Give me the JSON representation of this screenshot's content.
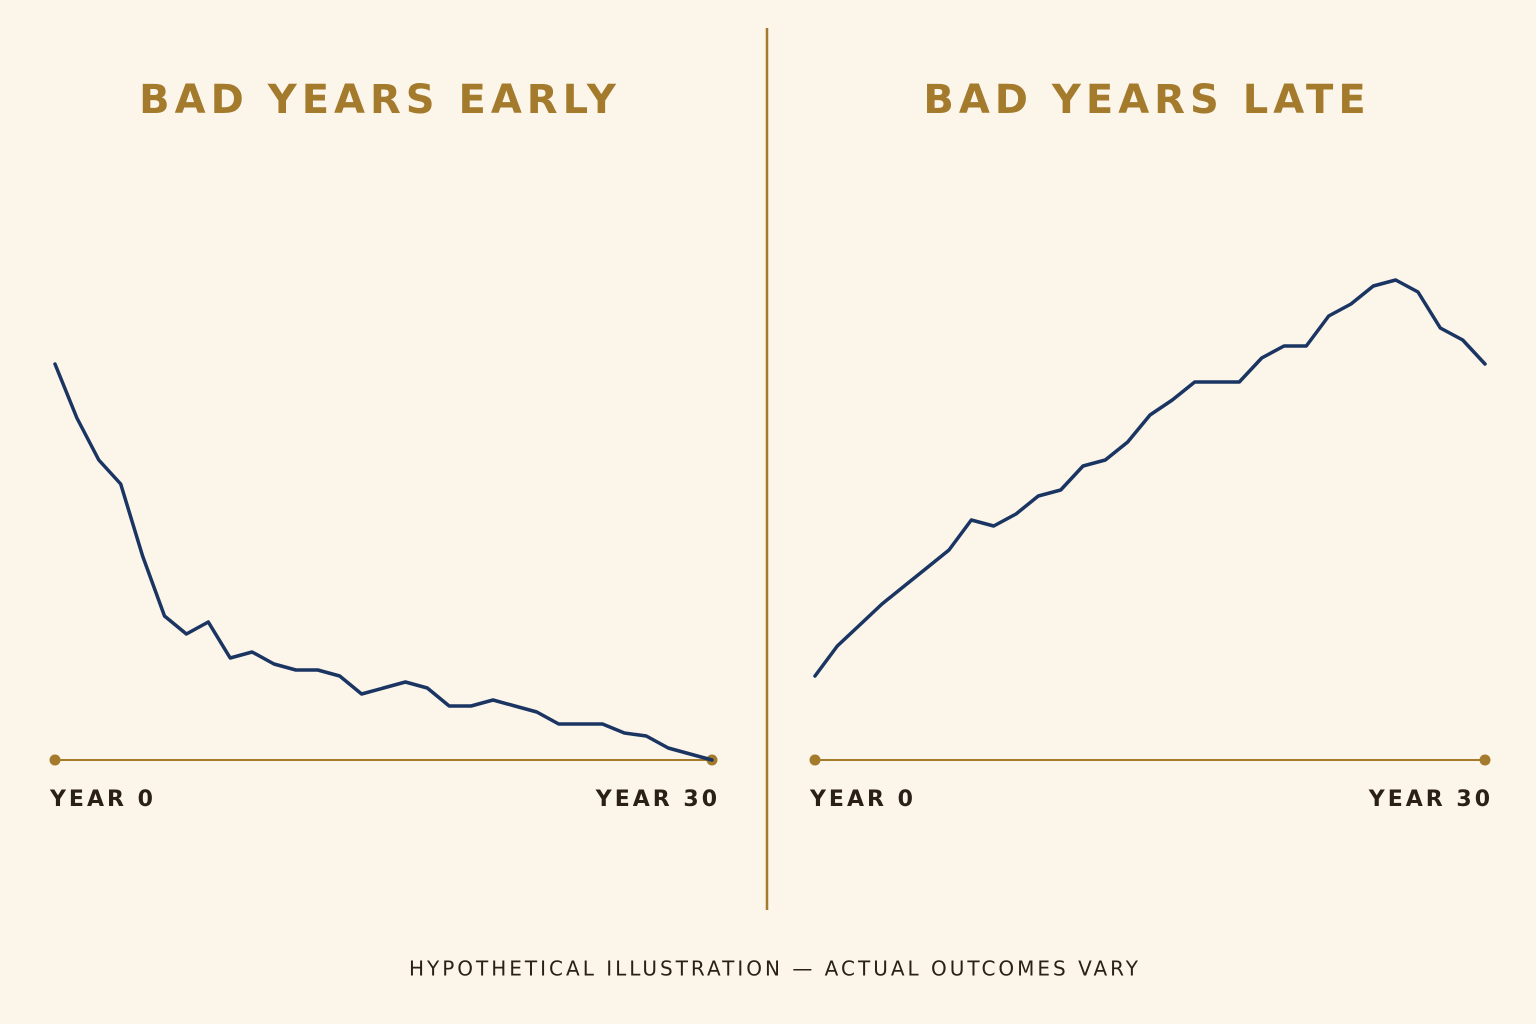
{
  "chart_data": [
    {
      "type": "line",
      "title": "BAD YEARS EARLY",
      "color": "#1b3563",
      "x": [
        0,
        1,
        2,
        3,
        4,
        5,
        6,
        7,
        8,
        9,
        10,
        11,
        12,
        13,
        14,
        15,
        16,
        17,
        18,
        19,
        20,
        21,
        22,
        23,
        24,
        25,
        26,
        27,
        28,
        29,
        30
      ],
      "values": [
        66,
        57,
        50,
        46,
        34,
        24,
        21,
        23,
        17,
        18,
        16,
        15,
        15,
        14,
        11,
        12,
        13,
        12,
        9,
        9,
        10,
        9,
        8,
        6,
        6,
        6,
        4.5,
        4,
        2,
        1,
        0
      ],
      "xlim": [
        0,
        30
      ],
      "ylim": [
        0,
        100
      ],
      "xticks": [
        {
          "value": 0,
          "label": "YEAR 0"
        },
        {
          "value": 30,
          "label": "YEAR 30"
        }
      ]
    },
    {
      "type": "line",
      "title": "BAD YEARS LATE",
      "color": "#1b3563",
      "x": [
        0,
        1,
        2,
        3,
        4,
        5,
        6,
        7,
        8,
        9,
        10,
        11,
        12,
        13,
        14,
        15,
        16,
        17,
        18,
        19,
        20,
        21,
        22,
        23,
        24,
        25,
        26,
        27,
        28,
        29,
        30
      ],
      "values": [
        14,
        19,
        22.5,
        26,
        29,
        32,
        35,
        40,
        39,
        41,
        44,
        45,
        49,
        50,
        53,
        57.5,
        60,
        63,
        63,
        63,
        67,
        69,
        69,
        74,
        76,
        79,
        80,
        78,
        72,
        70,
        66
      ],
      "xlim": [
        0,
        30
      ],
      "ylim": [
        0,
        100
      ],
      "xticks": [
        {
          "value": 0,
          "label": "YEAR 0"
        },
        {
          "value": 30,
          "label": "YEAR 30"
        }
      ]
    }
  ],
  "footer": "HYPOTHETICAL ILLUSTRATION — ACTUAL OUTCOMES VARY"
}
